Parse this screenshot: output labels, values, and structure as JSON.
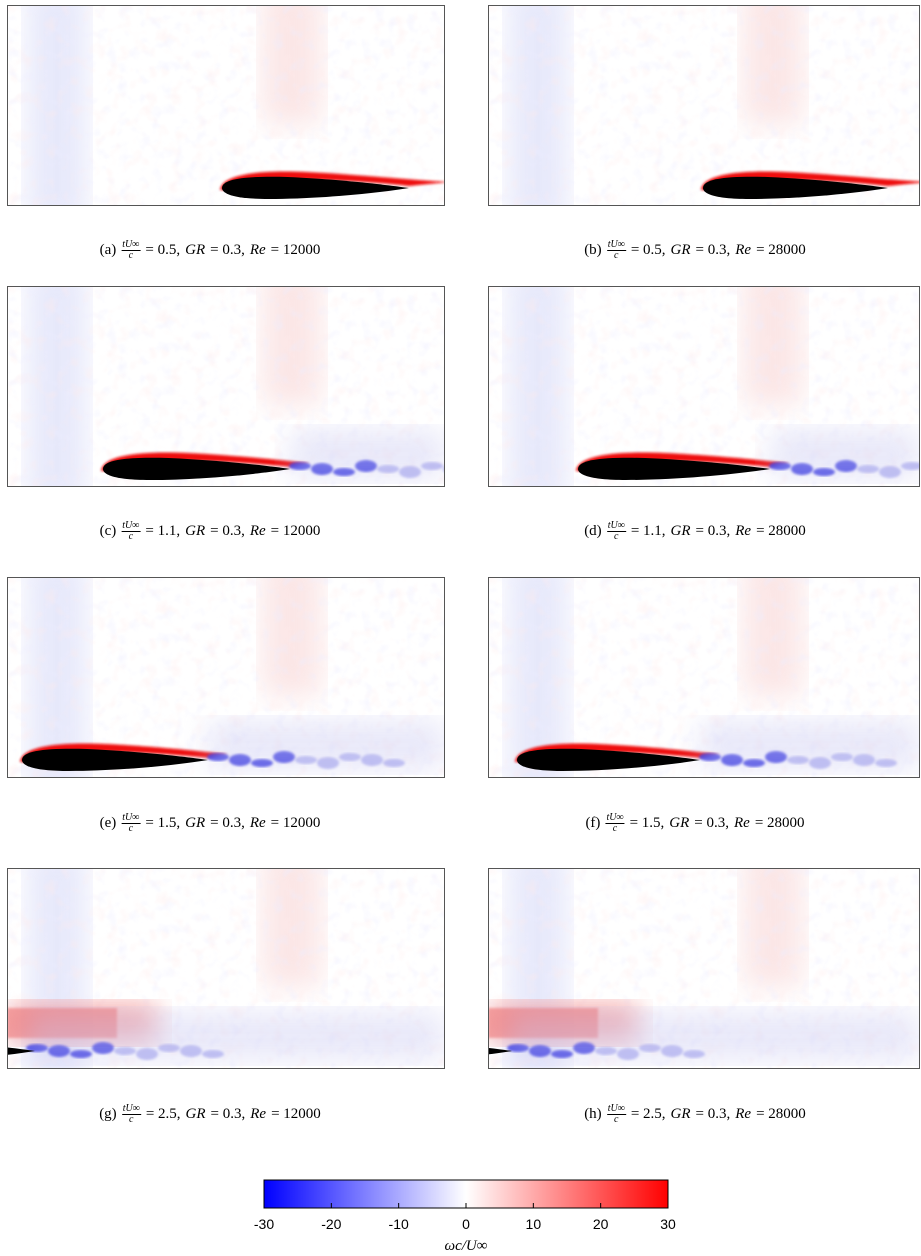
{
  "panels": [
    {
      "caption": [
        {
          "text": "(a)"
        },
        {
          "num": "tU∞",
          "den": "c"
        },
        {
          "text": "= 0.5,"
        },
        {
          "text": "GR",
          "italic": true
        },
        {
          "text": "= 0.3,"
        },
        {
          "text": "Re",
          "italic": true
        },
        {
          "text": "= 12000"
        }
      ]
    },
    {
      "caption": [
        {
          "text": "(b)"
        },
        {
          "num": "tU∞",
          "den": "c"
        },
        {
          "text": "= 0.5,"
        },
        {
          "text": "GR",
          "italic": true
        },
        {
          "text": "= 0.3,"
        },
        {
          "text": "Re",
          "italic": true
        },
        {
          "text": "= 28000"
        }
      ]
    },
    {
      "caption": [
        {
          "text": "(c)"
        },
        {
          "num": "tU∞",
          "den": "c"
        },
        {
          "text": "= 1.1,"
        },
        {
          "text": "GR",
          "italic": true
        },
        {
          "text": "= 0.3,"
        },
        {
          "text": "Re",
          "italic": true
        },
        {
          "text": "= 12000"
        }
      ]
    },
    {
      "caption": [
        {
          "text": "(d)"
        },
        {
          "num": "tU∞",
          "den": "c"
        },
        {
          "text": "= 1.1,"
        },
        {
          "text": "GR",
          "italic": true
        },
        {
          "text": "= 0.3,"
        },
        {
          "text": "Re",
          "italic": true
        },
        {
          "text": "= 28000"
        }
      ]
    },
    {
      "caption": [
        {
          "text": "(e)"
        },
        {
          "num": "tU∞",
          "den": "c"
        },
        {
          "text": "= 1.5,"
        },
        {
          "text": "GR",
          "italic": true
        },
        {
          "text": "= 0.3,"
        },
        {
          "text": "Re",
          "italic": true
        },
        {
          "text": "= 12000"
        }
      ]
    },
    {
      "caption": [
        {
          "text": "(f)"
        },
        {
          "num": "tU∞",
          "den": "c"
        },
        {
          "text": "= 1.5,"
        },
        {
          "text": "GR",
          "italic": true
        },
        {
          "text": "= 0.3,"
        },
        {
          "text": "Re",
          "italic": true
        },
        {
          "text": "= 28000"
        }
      ]
    },
    {
      "caption": [
        {
          "text": "(g)"
        },
        {
          "num": "tU∞",
          "den": "c"
        },
        {
          "text": "= 2.5,"
        },
        {
          "text": "GR",
          "italic": true
        },
        {
          "text": "= 0.3,"
        },
        {
          "text": "Re",
          "italic": true
        },
        {
          "text": "= 12000"
        }
      ]
    },
    {
      "caption": [
        {
          "text": "(h)"
        },
        {
          "num": "tU∞",
          "den": "c"
        },
        {
          "text": "= 2.5,"
        },
        {
          "text": "GR",
          "italic": true
        },
        {
          "text": "= 0.3,"
        },
        {
          "text": "Re",
          "italic": true
        },
        {
          "text": "= 28000"
        }
      ]
    }
  ],
  "colorbar": {
    "lim": [
      -30,
      30
    ],
    "ticks": [
      -30,
      -20,
      -10,
      0,
      10,
      20,
      30
    ],
    "label": "ωc/U∞",
    "colors": [
      "#0000ff",
      "#ffffff",
      "#ff0000"
    ]
  }
}
